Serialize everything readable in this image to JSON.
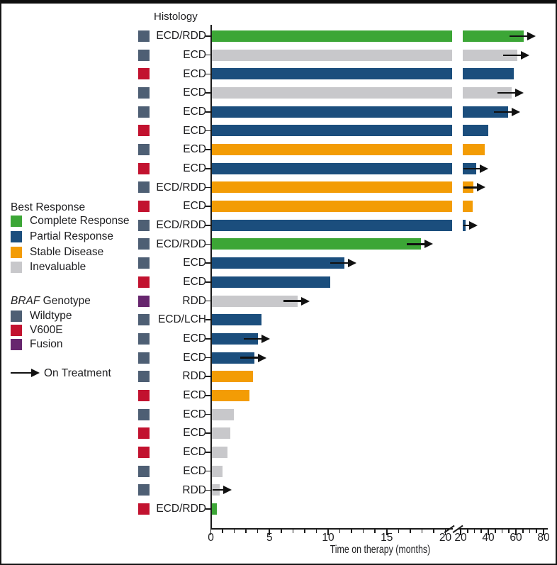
{
  "figure": {
    "histology_header": "Histology"
  },
  "legend": {
    "best_response": {
      "title": "Best Response",
      "items": [
        {
          "label": "Complete Response",
          "color_key": "Complete Response"
        },
        {
          "label": "Partial Response",
          "color_key": "Partial Response"
        },
        {
          "label": "Stable Disease",
          "color_key": "Stable Disease"
        },
        {
          "label": "Inevaluable",
          "color_key": "Inevaluable"
        }
      ]
    },
    "braf_genotype": {
      "title_italic": "BRAF",
      "title_rest": " Genotype",
      "items": [
        {
          "label": "Wildtype",
          "color_key": "Wildtype"
        },
        {
          "label": "V600E",
          "color_key": "V600E"
        },
        {
          "label": "Fusion",
          "color_key": "Fusion"
        }
      ]
    },
    "on_treatment_label": "On Treatment"
  },
  "colors": {
    "response": {
      "Complete Response": "#3CA636",
      "Partial Response": "#1B4E7D",
      "Stable Disease": "#F39C05",
      "Inevaluable": "#C8C8CB"
    },
    "genotype": {
      "Wildtype": "#4E5F74",
      "V600E": "#C2122F",
      "Fusion": "#67266E"
    },
    "axis": "#1a1a1a"
  },
  "chart_data": {
    "type": "bar",
    "subtype": "swimmer-plot",
    "orientation": "horizontal",
    "title": "",
    "xlabel": "Time on therapy (months)",
    "column_header": "Histology",
    "x_axis": {
      "break": true,
      "left_segment": {
        "range": [
          0,
          20
        ],
        "major_ticks": [
          0,
          5,
          10,
          15,
          20
        ],
        "minor_tick_interval": 1
      },
      "right_segment": {
        "range": [
          20,
          80
        ],
        "major_ticks": [
          20,
          40,
          60,
          80
        ],
        "minor_tick_interval": 5
      }
    },
    "legend_position": "left",
    "patients": [
      {
        "histology": "ECD/RDD",
        "braf_genotype": "Wildtype",
        "best_response": "Complete Response",
        "months": 65.5,
        "on_treatment": true
      },
      {
        "histology": "ECD",
        "braf_genotype": "Wildtype",
        "best_response": "Inevaluable",
        "months": 61,
        "on_treatment": true
      },
      {
        "histology": "ECD",
        "braf_genotype": "V600E",
        "best_response": "Partial Response",
        "months": 58.5,
        "on_treatment": false
      },
      {
        "histology": "ECD",
        "braf_genotype": "Wildtype",
        "best_response": "Inevaluable",
        "months": 57,
        "on_treatment": true
      },
      {
        "histology": "ECD",
        "braf_genotype": "Wildtype",
        "best_response": "Partial Response",
        "months": 54.5,
        "on_treatment": true
      },
      {
        "histology": "ECD",
        "braf_genotype": "V600E",
        "best_response": "Partial Response",
        "months": 40,
        "on_treatment": false
      },
      {
        "histology": "ECD",
        "braf_genotype": "Wildtype",
        "best_response": "Stable Disease",
        "months": 37.5,
        "on_treatment": false
      },
      {
        "histology": "ECD",
        "braf_genotype": "V600E",
        "best_response": "Partial Response",
        "months": 31.5,
        "on_treatment": true
      },
      {
        "histology": "ECD/RDD",
        "braf_genotype": "Wildtype",
        "best_response": "Stable Disease",
        "months": 29,
        "on_treatment": true
      },
      {
        "histology": "ECD",
        "braf_genotype": "V600E",
        "best_response": "Stable Disease",
        "months": 28.5,
        "on_treatment": false
      },
      {
        "histology": "ECD/RDD",
        "braf_genotype": "Wildtype",
        "best_response": "Partial Response",
        "months": 23.5,
        "on_treatment": true
      },
      {
        "histology": "ECD/RDD",
        "braf_genotype": "Wildtype",
        "best_response": "Complete Response",
        "months": 17.8,
        "on_treatment": true
      },
      {
        "histology": "ECD",
        "braf_genotype": "Wildtype",
        "best_response": "Partial Response",
        "months": 11.3,
        "on_treatment": true
      },
      {
        "histology": "ECD",
        "braf_genotype": "V600E",
        "best_response": "Partial Response",
        "months": 10.1,
        "on_treatment": false
      },
      {
        "histology": "RDD",
        "braf_genotype": "Fusion",
        "best_response": "Inevaluable",
        "months": 7.3,
        "on_treatment": true
      },
      {
        "histology": "ECD/LCH",
        "braf_genotype": "Wildtype",
        "best_response": "Partial Response",
        "months": 4.2,
        "on_treatment": false
      },
      {
        "histology": "ECD",
        "braf_genotype": "Wildtype",
        "best_response": "Partial Response",
        "months": 3.9,
        "on_treatment": true
      },
      {
        "histology": "ECD",
        "braf_genotype": "Wildtype",
        "best_response": "Partial Response",
        "months": 3.6,
        "on_treatment": true
      },
      {
        "histology": "RDD",
        "braf_genotype": "Wildtype",
        "best_response": "Stable Disease",
        "months": 3.5,
        "on_treatment": false
      },
      {
        "histology": "ECD",
        "braf_genotype": "V600E",
        "best_response": "Stable Disease",
        "months": 3.2,
        "on_treatment": false
      },
      {
        "histology": "ECD",
        "braf_genotype": "Wildtype",
        "best_response": "Inevaluable",
        "months": 1.9,
        "on_treatment": false
      },
      {
        "histology": "ECD",
        "braf_genotype": "V600E",
        "best_response": "Inevaluable",
        "months": 1.6,
        "on_treatment": false
      },
      {
        "histology": "ECD",
        "braf_genotype": "V600E",
        "best_response": "Inevaluable",
        "months": 1.3,
        "on_treatment": false
      },
      {
        "histology": "ECD",
        "braf_genotype": "Wildtype",
        "best_response": "Inevaluable",
        "months": 0.9,
        "on_treatment": false
      },
      {
        "histology": "RDD",
        "braf_genotype": "Wildtype",
        "best_response": "Inevaluable",
        "months": 0.65,
        "on_treatment": true
      },
      {
        "histology": "ECD/RDD",
        "braf_genotype": "V600E",
        "best_response": "Complete Response",
        "months": 0.45,
        "on_treatment": false
      }
    ]
  }
}
